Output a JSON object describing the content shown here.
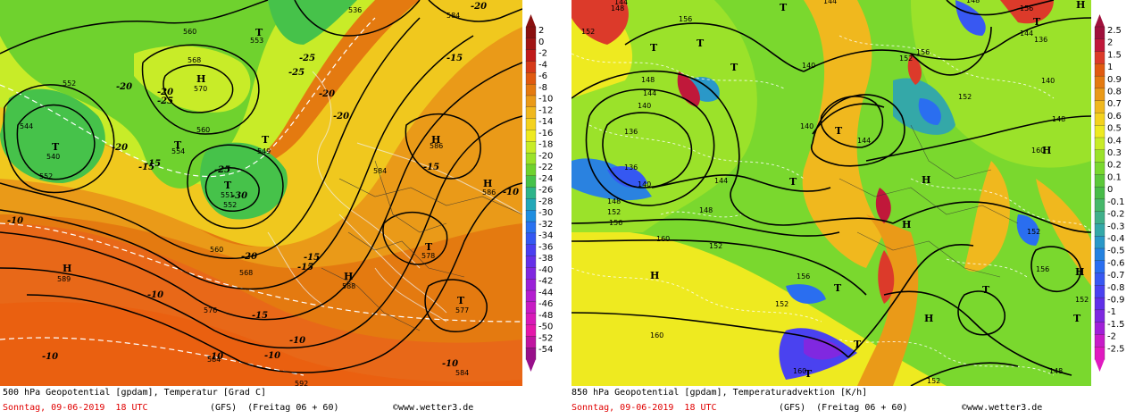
{
  "left": {
    "title": "500 hPa Geopotential [gpdam], Temperatur [Grad C]",
    "date": "Sonntag, 09-06-2019  18 UTC",
    "model": "(GFS)  (Freitag 06 + 60)",
    "copyright": "©www.wetter3.de",
    "scale_labels": [
      "2",
      "0",
      "-2",
      "-4",
      "-6",
      "-8",
      "-10",
      "-12",
      "-14",
      "-16",
      "-18",
      "-20",
      "-22",
      "-24",
      "-26",
      "-28",
      "-30",
      "-32",
      "-34",
      "-36",
      "-38",
      "-40",
      "-42",
      "-44",
      "-46",
      "-48",
      "-50",
      "-52",
      "-54"
    ],
    "scale_colors": [
      "#8a1010",
      "#a01515",
      "#c01a1a",
      "#d63a1a",
      "#e05a10",
      "#e47a10",
      "#ea9a18",
      "#f0b81e",
      "#f4d21e",
      "#eeea20",
      "#c8ec28",
      "#9be22a",
      "#6fd22e",
      "#46c24a",
      "#2eb48a",
      "#23a8b8",
      "#1f8ee0",
      "#2a72f0",
      "#3558f2",
      "#4a3ef0",
      "#6530e8",
      "#8028e0",
      "#9a22d8",
      "#b41ed0",
      "#c81cc4",
      "#d81ab8",
      "#e418aa",
      "#c015a0",
      "#98108a"
    ],
    "pressure_labels": [
      "560",
      "568",
      "552",
      "544",
      "553",
      "570",
      "540",
      "552",
      "560",
      "554",
      "549",
      "551",
      "552",
      "560",
      "568",
      "576",
      "584",
      "586",
      "584",
      "586",
      "578",
      "588",
      "589",
      "577",
      "584",
      "592",
      "584",
      "536"
    ],
    "temp_labels": [
      "-20",
      "-25",
      "-20",
      "-20",
      "-25",
      "-25",
      "-20",
      "-15",
      "-15",
      "-25",
      "-30",
      "-20",
      "-10",
      "-15",
      "-15",
      "-15",
      "-10",
      "-10",
      "-15",
      "-20",
      "-10",
      "-10",
      "-10",
      "-10",
      "-10",
      "-15",
      "-20"
    ],
    "marks": [
      "H",
      "H",
      "H",
      "H",
      "H",
      "T",
      "T",
      "T",
      "T",
      "T",
      "T",
      "T"
    ]
  },
  "right": {
    "title": "850 hPa Geopotential [gpdam], Temperaturadvektion [K/h]",
    "date": "Sonntag, 09-06-2019  18 UTC",
    "model": "(GFS)  (Freitag 06 + 60)",
    "copyright": "©www.wetter3.de",
    "scale_labels": [
      "2.5",
      "2",
      "1.5",
      "1",
      "0.9",
      "0.8",
      "0.7",
      "0.6",
      "0.5",
      "0.4",
      "0.3",
      "0.2",
      "0.1",
      "0",
      "-0.1",
      "-0.2",
      "-0.3",
      "-0.4",
      "-0.5",
      "-0.6",
      "-0.7",
      "-0.8",
      "-0.9",
      "-1",
      "-1.5",
      "-2",
      "-2.5"
    ],
    "scale_colors": [
      "#a0103c",
      "#c0183a",
      "#dc3a2a",
      "#e05a10",
      "#e47a10",
      "#ea9a18",
      "#f0b81e",
      "#f4d21e",
      "#eeea20",
      "#c8ec28",
      "#9be22a",
      "#7ad82e",
      "#5cc83a",
      "#48bc48",
      "#46b86a",
      "#40b08a",
      "#34a8a8",
      "#2a98c8",
      "#2482e0",
      "#2a6ef0",
      "#3858f2",
      "#4a42f0",
      "#6030e8",
      "#7e28e0",
      "#a020d8",
      "#c81cc8",
      "#e01ac0"
    ],
    "pressure_labels": [
      "148",
      "144",
      "156",
      "152",
      "148",
      "144",
      "140",
      "136",
      "136",
      "140",
      "144",
      "148",
      "152",
      "156",
      "160",
      "148",
      "152",
      "160",
      "152",
      "156",
      "160",
      "144",
      "140",
      "140",
      "144",
      "152",
      "156",
      "148",
      "152",
      "156",
      "148",
      "144",
      "136",
      "140",
      "152",
      "160",
      "156",
      "152",
      "148",
      "152"
    ],
    "marks": [
      "H",
      "H",
      "H",
      "H",
      "H",
      "H",
      "H",
      "T",
      "T",
      "T",
      "T",
      "T",
      "T",
      "T",
      "T",
      "T",
      "T",
      "T",
      "T"
    ]
  }
}
